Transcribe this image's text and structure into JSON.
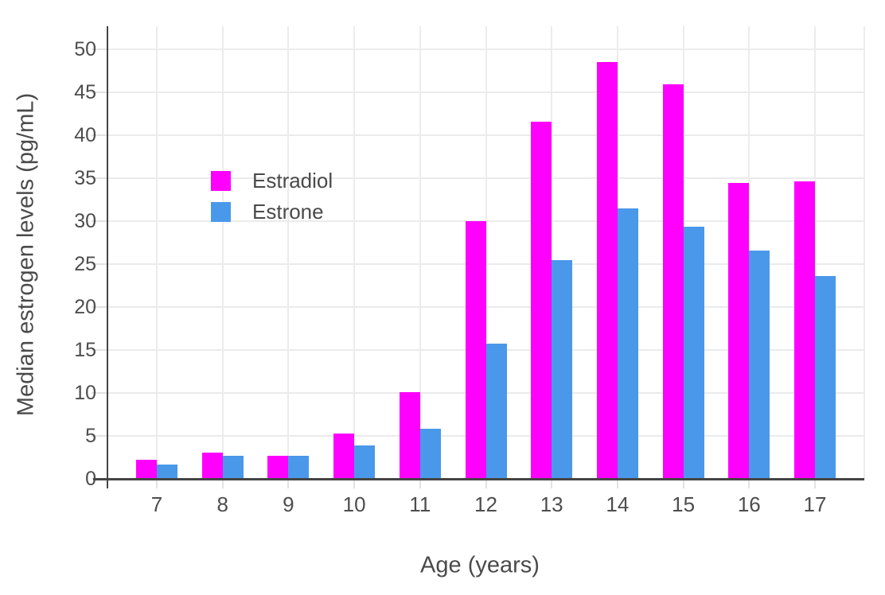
{
  "chart_data": {
    "type": "bar",
    "title": "",
    "xlabel": "Age (years)",
    "ylabel": "Median estrogen levels (pg/mL)",
    "categories": [
      "7",
      "8",
      "9",
      "10",
      "11",
      "12",
      "13",
      "14",
      "15",
      "16",
      "17"
    ],
    "series": [
      {
        "name": "Estradiol",
        "color": "#FF00FF",
        "values": [
          2.2,
          3.1,
          2.7,
          5.3,
          10.1,
          30.0,
          41.6,
          48.5,
          45.9,
          34.5,
          34.6
        ]
      },
      {
        "name": "Estrone",
        "color": "#4A98EA",
        "values": [
          1.7,
          2.7,
          2.7,
          3.9,
          5.8,
          15.7,
          25.5,
          31.5,
          29.4,
          26.6,
          23.6
        ]
      }
    ],
    "yticks": [
      0,
      5,
      10,
      15,
      20,
      25,
      30,
      35,
      40,
      45,
      50
    ],
    "ylim": [
      0,
      52.7
    ],
    "grid": true,
    "legend_position": "inside-top-left",
    "colors": {
      "grid": "#ebebeb",
      "axis": "#444444",
      "text": "#4a4a4a"
    }
  }
}
